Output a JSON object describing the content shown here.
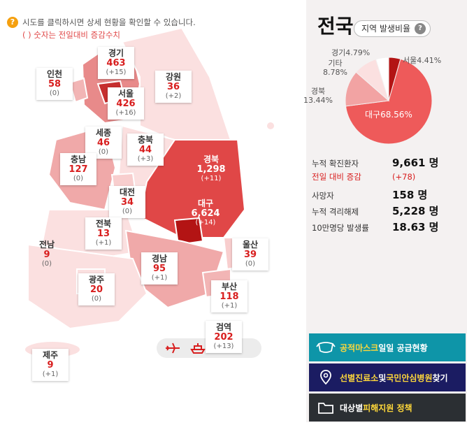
{
  "help": {
    "icon": "question-icon",
    "text": "시도를 클릭하시면 상세 현황을 확인할 수 있습니다.",
    "note": "( ) 숫자는 전일대비 증감수치"
  },
  "regions": [
    {
      "id": "gyeonggi",
      "name": "경기",
      "count": "463",
      "delta": "(+15)"
    },
    {
      "id": "incheon",
      "name": "인천",
      "count": "58",
      "delta": "(0)"
    },
    {
      "id": "gangwon",
      "name": "강원",
      "count": "36",
      "delta": "(+2)"
    },
    {
      "id": "seoul",
      "name": "서울",
      "count": "426",
      "delta": "(+16)"
    },
    {
      "id": "sejong",
      "name": "세종",
      "count": "46",
      "delta": "(0)"
    },
    {
      "id": "chungbuk",
      "name": "충북",
      "count": "44",
      "delta": "(+3)"
    },
    {
      "id": "chungnam",
      "name": "충남",
      "count": "127",
      "delta": "(0)"
    },
    {
      "id": "gyeongbuk",
      "name": "경북",
      "count": "1,298",
      "delta": "(+11)"
    },
    {
      "id": "daejeon",
      "name": "대전",
      "count": "34",
      "delta": "(0)"
    },
    {
      "id": "daegu",
      "name": "대구",
      "count": "6,624",
      "delta": "(+14)"
    },
    {
      "id": "jeonbuk",
      "name": "전북",
      "count": "13",
      "delta": "(+1)"
    },
    {
      "id": "jeonnam",
      "name": "전남",
      "count": "9",
      "delta": "(0)"
    },
    {
      "id": "ulsan",
      "name": "울산",
      "count": "39",
      "delta": "(0)"
    },
    {
      "id": "gyeongnam",
      "name": "경남",
      "count": "95",
      "delta": "(+1)"
    },
    {
      "id": "gwangju",
      "name": "광주",
      "count": "20",
      "delta": "(0)"
    },
    {
      "id": "busan",
      "name": "부산",
      "count": "118",
      "delta": "(+1)"
    },
    {
      "id": "quarantine",
      "name": "검역",
      "count": "202",
      "delta": "(+13)"
    },
    {
      "id": "jeju",
      "name": "제주",
      "count": "9",
      "delta": "(+1)"
    }
  ],
  "transport": {
    "airplane_icon": "airplane-icon",
    "ship_icon": "ship-icon"
  },
  "panel": {
    "title": "전국",
    "ratio_button": "지역 발생비율",
    "pie": {
      "slices": [
        {
          "label": "대구",
          "value": 68.56,
          "text": "68.56%",
          "color": "#ee5a5a"
        },
        {
          "label": "경북",
          "value": 13.44,
          "text": "13.44%",
          "color": "#f2a3a3"
        },
        {
          "label": "기타",
          "value": 8.78,
          "text": "8.78%",
          "color": "#fbe0e0"
        },
        {
          "label": "경기",
          "value": 4.79,
          "text": "4.79%",
          "color": "#ffffff"
        },
        {
          "label": "서울",
          "value": 4.41,
          "text": "4.41%",
          "color": "#b31414"
        }
      ],
      "label_seoul": "서울4.41%",
      "label_gyeonggi": "경기4.79%",
      "label_etc_name": "기타",
      "label_etc_value": "8.78%",
      "label_gb_name": "경북",
      "label_gb_value": "13.44%",
      "label_daegu": "대구68.56%"
    },
    "stats": [
      {
        "key": "누적 확진환자",
        "value": "9,661 명",
        "red": false
      },
      {
        "key": "전일 대비 증감",
        "value": "(+78)",
        "red": true
      },
      {
        "key": "사망자",
        "value": "158 명",
        "red": false
      },
      {
        "key": "누적 격리해제",
        "value": "5,228 명",
        "red": false
      },
      {
        "key": "10만명당 발생률",
        "value": "18.63 명",
        "red": false
      }
    ]
  },
  "buttons": {
    "mask": {
      "a": "공적마스크",
      "b": " 일일 공급현황"
    },
    "clinic": {
      "a": "선별진료소",
      "b": " 및 ",
      "c": "국민안심병원",
      "d": " 찾기"
    },
    "support": {
      "a": "대상별 ",
      "b": "피해지원 정책"
    }
  }
}
